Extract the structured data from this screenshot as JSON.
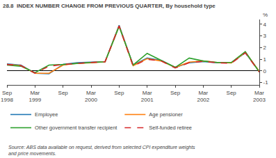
{
  "chart_data": {
    "type": "line",
    "title": "28.8",
    "subtitle": "INDEX NUMBER CHANGE FROM PREVIOUS QUARTER, By household type",
    "ylabel": "%",
    "categories": [
      "Sep\n1998",
      null,
      "Mar\n1999",
      null,
      "Sep",
      null,
      "Mar\n2000",
      null,
      "Sep",
      null,
      "Mar\n2001",
      null,
      "Sep",
      null,
      "Mar\n2002",
      null,
      "Sep",
      null,
      "Mar\n2003"
    ],
    "series": [
      {
        "name": "Employee",
        "values": [
          0.6,
          0.5,
          -0.2,
          -0.25,
          0.55,
          0.7,
          0.75,
          0.8,
          3.9,
          0.5,
          1.1,
          0.9,
          0.3,
          0.7,
          0.8,
          0.7,
          0.7,
          1.55,
          -0.05
        ]
      },
      {
        "name": "Age pensioner",
        "values": [
          0.55,
          0.45,
          -0.2,
          -0.2,
          0.5,
          0.65,
          0.7,
          0.78,
          3.85,
          0.45,
          1.05,
          0.85,
          0.3,
          0.75,
          0.85,
          0.72,
          0.68,
          1.6,
          -0.05
        ]
      },
      {
        "name": "Other government transfer recipient",
        "values": [
          0.5,
          0.4,
          -0.15,
          0.5,
          0.55,
          0.65,
          0.72,
          0.78,
          3.8,
          0.5,
          1.5,
          0.9,
          0.3,
          1.1,
          0.85,
          0.72,
          0.72,
          1.65,
          -0.1
        ]
      },
      {
        "name": "Self-funded retiree",
        "line_style": "dashed",
        "values": [
          0.55,
          0.45,
          -0.2,
          0.4,
          0.55,
          0.65,
          0.72,
          0.78,
          3.85,
          0.4,
          1.0,
          0.85,
          0.25,
          0.7,
          0.82,
          0.7,
          0.65,
          1.55,
          -0.1
        ]
      }
    ],
    "ylim": [
      -1.2,
      4.4
    ],
    "yticks": [
      -1,
      0,
      1,
      2,
      3,
      4
    ],
    "grid": false,
    "legend": "bottom",
    "annotations": [
      "Source: ABS data available on request, derived from selected CPI expenditure weights",
      "and price movements."
    ]
  }
}
